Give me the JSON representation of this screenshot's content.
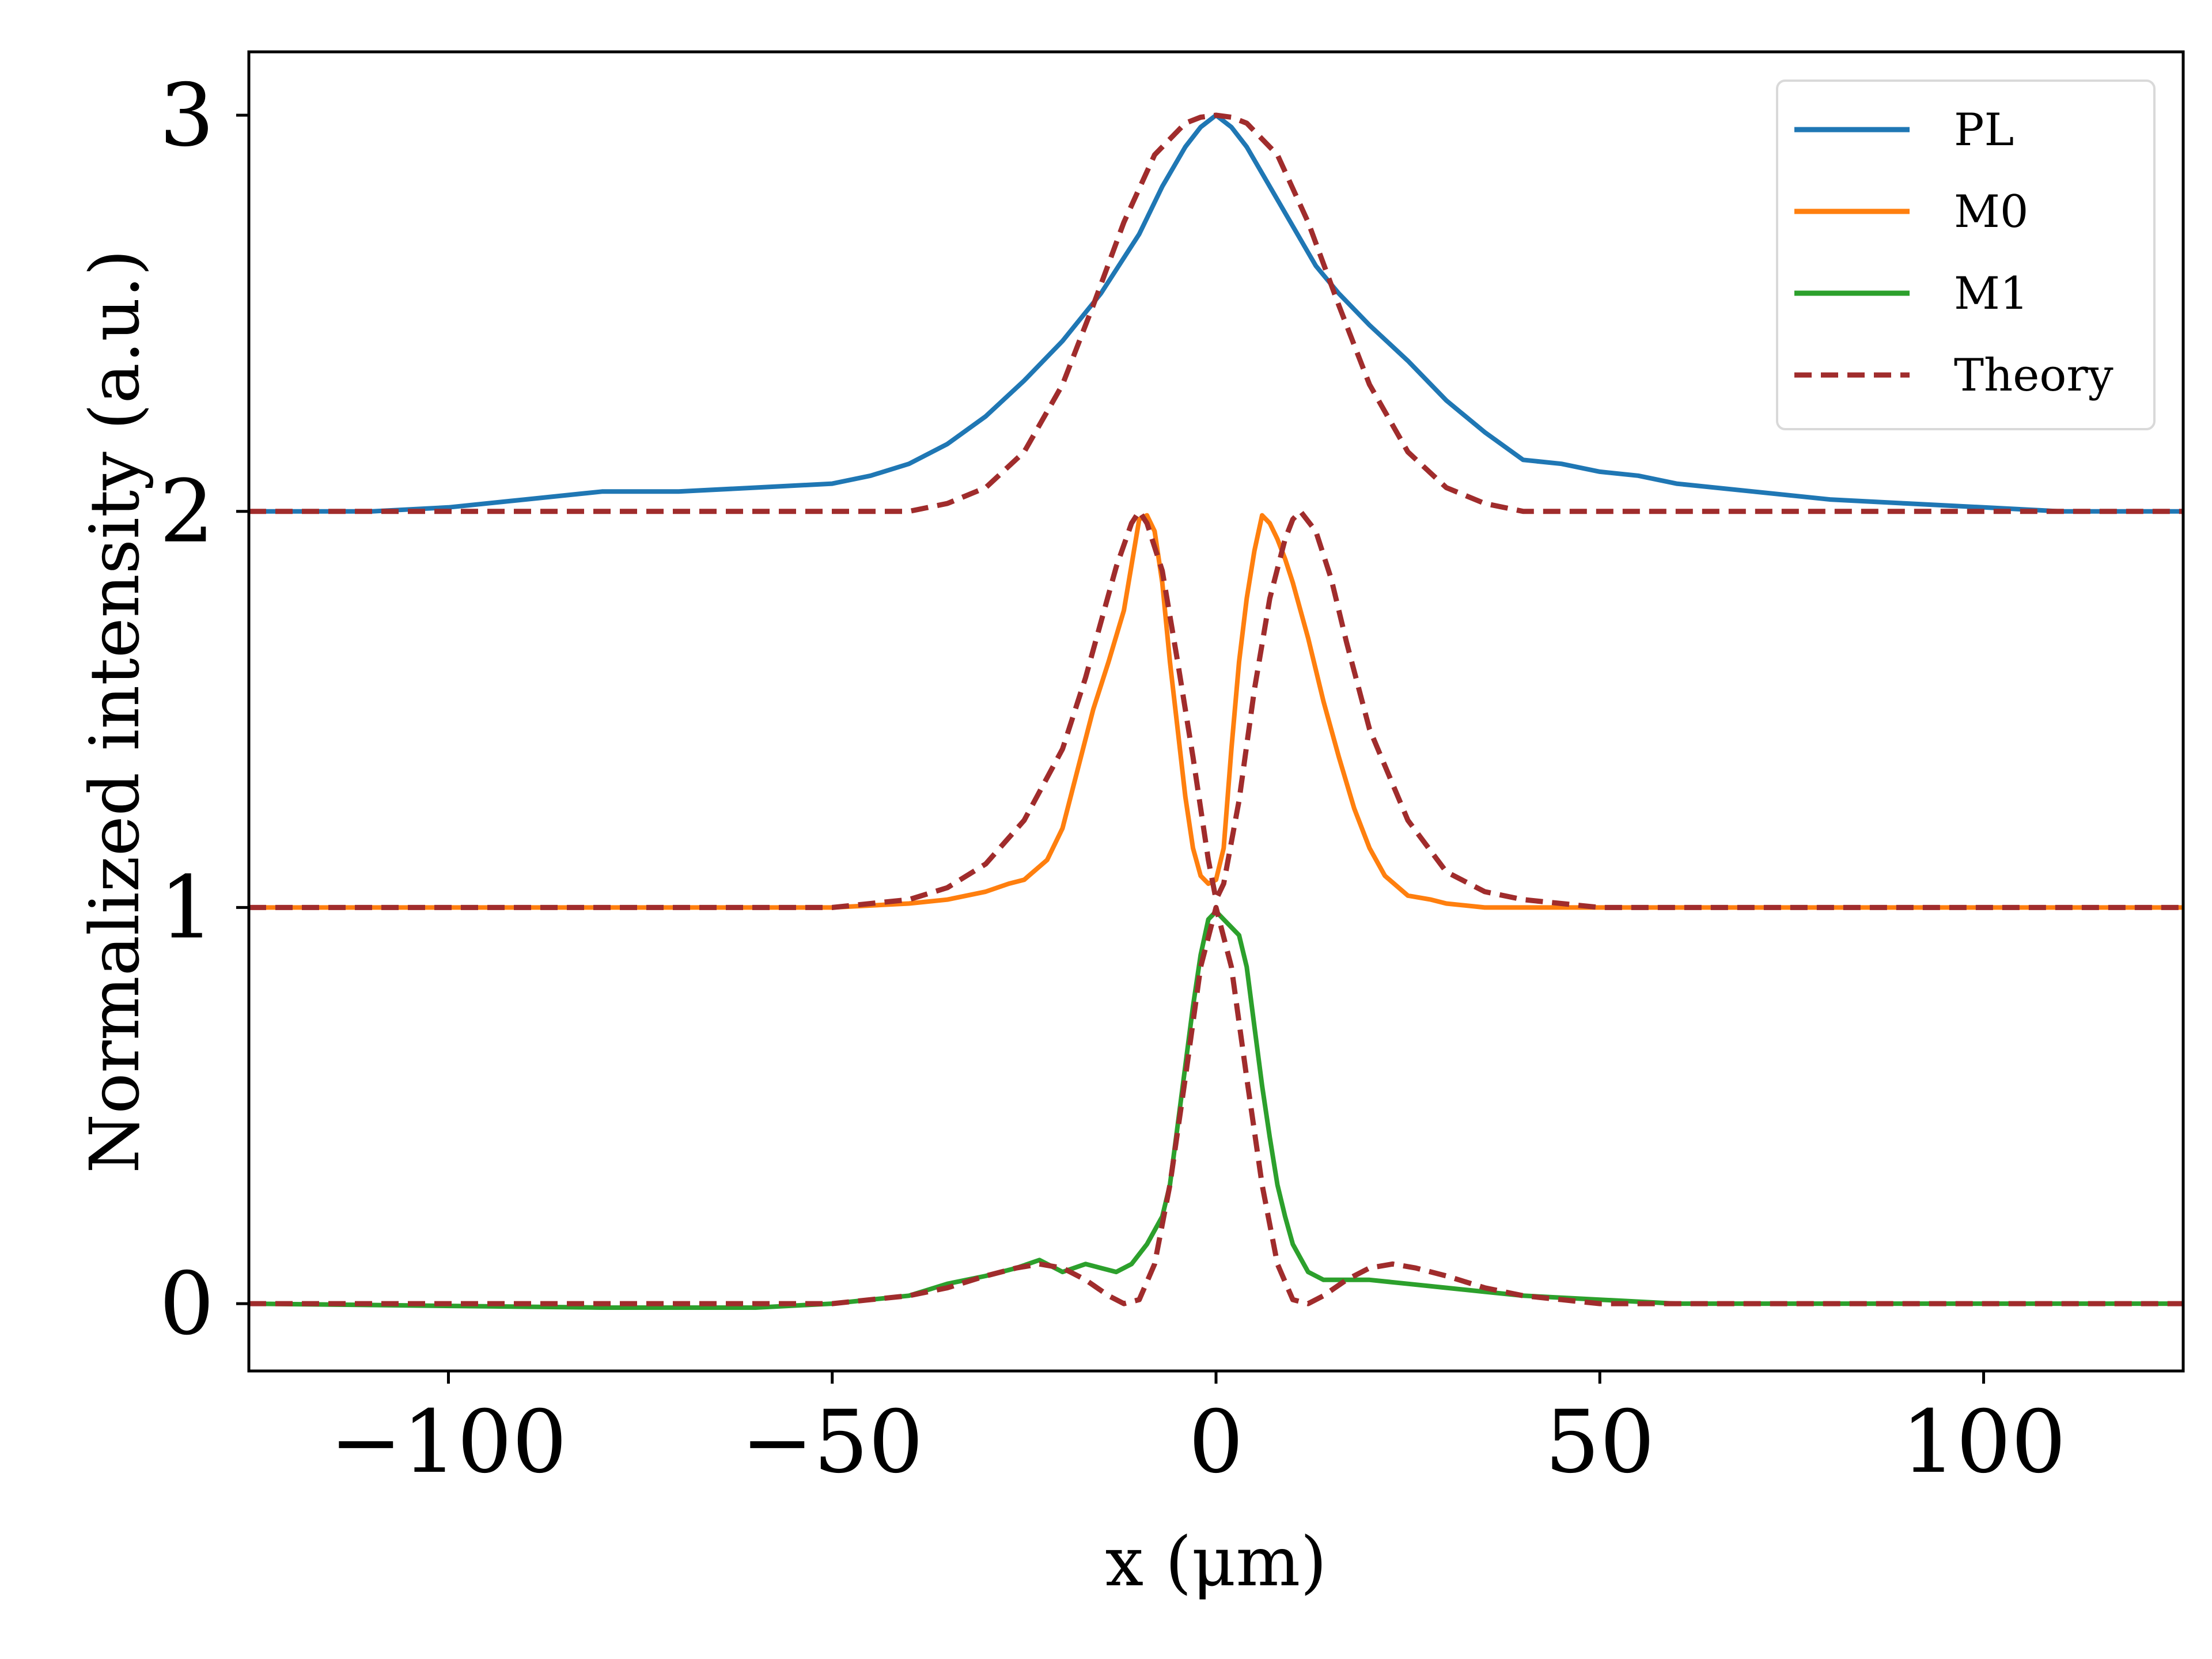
{
  "chart_data": {
    "type": "line",
    "title": "",
    "xlabel": "x (μm)",
    "ylabel": "Normalized intensity (a.u.)",
    "xlim": [
      -126,
      126
    ],
    "ylim": [
      -0.17,
      3.16
    ],
    "xticks": [
      -100,
      -50,
      0,
      50,
      100
    ],
    "xtick_labels": [
      "−100",
      "−50",
      "0",
      "50",
      "100"
    ],
    "yticks": [
      0,
      1,
      2,
      3
    ],
    "ytick_labels": [
      "0",
      "1",
      "2",
      "3"
    ],
    "grid": false,
    "legend_position": "top-right",
    "series": [
      {
        "name": "PL",
        "color": "#1f77b4",
        "style": "solid",
        "x": [
          -126,
          -110,
          -100,
          -90,
          -80,
          -70,
          -60,
          -50,
          -45,
          -40,
          -35,
          -30,
          -25,
          -20,
          -15,
          -10,
          -7,
          -4,
          -2,
          0,
          2,
          4,
          7,
          10,
          13,
          16,
          20,
          25,
          30,
          35,
          40,
          45,
          50,
          55,
          60,
          70,
          80,
          90,
          100,
          110,
          126
        ],
        "y": [
          2.0,
          2.0,
          2.01,
          2.03,
          2.05,
          2.05,
          2.06,
          2.07,
          2.09,
          2.12,
          2.17,
          2.24,
          2.33,
          2.43,
          2.55,
          2.7,
          2.82,
          2.92,
          2.97,
          3.0,
          2.97,
          2.92,
          2.82,
          2.72,
          2.62,
          2.55,
          2.47,
          2.38,
          2.28,
          2.2,
          2.13,
          2.12,
          2.1,
          2.09,
          2.07,
          2.05,
          2.03,
          2.02,
          2.01,
          2.0,
          2.0
        ]
      },
      {
        "name": "M0",
        "color": "#ff7f0e",
        "style": "solid",
        "x": [
          -126,
          -60,
          -50,
          -40,
          -35,
          -30,
          -27,
          -25,
          -22,
          -20,
          -18,
          -16,
          -14,
          -12,
          -10,
          -9,
          -8,
          -7,
          -6,
          -5,
          -4,
          -3,
          -2,
          -1,
          0,
          1,
          2,
          3,
          4,
          5,
          6,
          7,
          8,
          9,
          10,
          12,
          14,
          16,
          18,
          20,
          22,
          25,
          28,
          30,
          35,
          40,
          50,
          126
        ],
        "y": [
          1.0,
          1.0,
          1.0,
          1.01,
          1.02,
          1.04,
          1.06,
          1.07,
          1.12,
          1.2,
          1.35,
          1.5,
          1.62,
          1.75,
          1.98,
          1.99,
          1.95,
          1.82,
          1.62,
          1.45,
          1.28,
          1.15,
          1.08,
          1.06,
          1.07,
          1.15,
          1.4,
          1.62,
          1.78,
          1.9,
          1.99,
          1.97,
          1.93,
          1.88,
          1.82,
          1.68,
          1.52,
          1.38,
          1.25,
          1.15,
          1.08,
          1.03,
          1.02,
          1.01,
          1.0,
          1.0,
          1.0,
          1.0
        ]
      },
      {
        "name": "M1",
        "color": "#2ca02c",
        "style": "solid",
        "x": [
          -126,
          -80,
          -60,
          -50,
          -40,
          -35,
          -30,
          -26,
          -23,
          -20,
          -17,
          -15,
          -13,
          -11,
          -9,
          -7,
          -6,
          -5,
          -4,
          -3,
          -2,
          -1,
          0,
          1,
          2,
          3,
          4,
          5,
          6,
          7,
          8,
          9,
          10,
          12,
          14,
          17,
          20,
          25,
          30,
          35,
          40,
          50,
          60,
          126
        ],
        "y": [
          0.0,
          -0.01,
          -0.01,
          0.0,
          0.02,
          0.05,
          0.07,
          0.09,
          0.11,
          0.08,
          0.1,
          0.09,
          0.08,
          0.1,
          0.15,
          0.22,
          0.3,
          0.45,
          0.6,
          0.75,
          0.88,
          0.97,
          0.99,
          0.97,
          0.95,
          0.93,
          0.85,
          0.7,
          0.55,
          0.42,
          0.3,
          0.22,
          0.15,
          0.08,
          0.06,
          0.06,
          0.06,
          0.05,
          0.04,
          0.03,
          0.02,
          0.01,
          0.0,
          0.0
        ]
      },
      {
        "name": "Theory",
        "color": "#a02c2c",
        "style": "dashed",
        "x": [
          -126,
          -40,
          -35,
          -30,
          -25,
          -20,
          -16,
          -12,
          -8,
          -4,
          -2,
          0,
          2,
          4,
          8,
          12,
          16,
          20,
          25,
          30,
          35,
          40,
          126
        ],
        "y": [
          2.0,
          2.0,
          2.02,
          2.06,
          2.15,
          2.32,
          2.52,
          2.73,
          2.9,
          2.98,
          2.995,
          3.0,
          2.995,
          2.98,
          2.9,
          2.73,
          2.52,
          2.32,
          2.15,
          2.06,
          2.02,
          2.0,
          2.0
        ],
        "x2": [
          -126,
          -60,
          -50,
          -45,
          -40,
          -35,
          -30,
          -25,
          -20,
          -17,
          -15,
          -13,
          -11,
          -10,
          -9,
          -7,
          -5,
          -3,
          -1,
          0,
          1,
          3,
          5,
          7,
          9,
          10,
          11,
          13,
          15,
          17,
          20,
          25,
          30,
          35,
          40,
          45,
          50,
          60,
          126
        ],
        "y2": [
          1.0,
          1.0,
          1.0,
          1.01,
          1.02,
          1.05,
          1.11,
          1.22,
          1.4,
          1.58,
          1.72,
          1.86,
          1.97,
          2.0,
          1.97,
          1.85,
          1.62,
          1.38,
          1.12,
          1.02,
          1.06,
          1.27,
          1.55,
          1.78,
          1.93,
          1.98,
          2.0,
          1.95,
          1.83,
          1.67,
          1.45,
          1.22,
          1.09,
          1.04,
          1.02,
          1.01,
          1.0,
          1.0,
          1.0
        ],
        "x3": [
          -126,
          -60,
          -50,
          -45,
          -40,
          -35,
          -30,
          -26,
          -23,
          -20,
          -17,
          -14,
          -12,
          -10,
          -8,
          -6,
          -4,
          -2,
          0,
          2,
          4,
          6,
          8,
          10,
          12,
          14,
          17,
          20,
          23,
          26,
          30,
          35,
          40,
          45,
          50,
          60,
          126
        ],
        "y3": [
          0.0,
          0.0,
          0.0,
          0.01,
          0.02,
          0.04,
          0.07,
          0.09,
          0.1,
          0.09,
          0.06,
          0.02,
          0.0,
          0.01,
          0.1,
          0.3,
          0.57,
          0.85,
          1.0,
          0.85,
          0.57,
          0.3,
          0.1,
          0.01,
          0.0,
          0.02,
          0.06,
          0.09,
          0.1,
          0.09,
          0.07,
          0.04,
          0.02,
          0.01,
          0.0,
          0.0,
          0.0
        ]
      }
    ]
  }
}
